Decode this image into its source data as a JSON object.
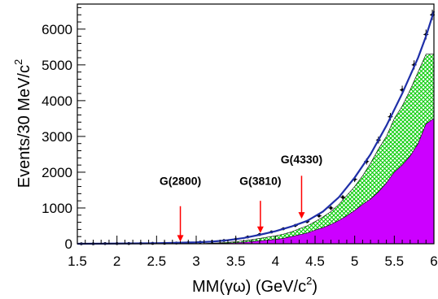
{
  "chart_data": {
    "type": "area",
    "ylabel": "Events/30 MeV/c",
    "ylabel_sup": "2",
    "xlabel": "MM(γω) (GeV/c",
    "xlabel_sup": "2",
    "xlabel_end": ")",
    "xlim": [
      1.5,
      6.0
    ],
    "ylim": [
      0,
      6700
    ],
    "xticks": [
      "1.5",
      "2",
      "2.5",
      "3",
      "3.5",
      "4",
      "4.5",
      "5",
      "5.5",
      "6"
    ],
    "xtick_values": [
      1.5,
      2.0,
      2.5,
      3.0,
      3.5,
      4.0,
      4.5,
      5.0,
      5.5,
      6.0
    ],
    "yticks": [
      "0",
      "1000",
      "2000",
      "3000",
      "4000",
      "5000",
      "6000"
    ],
    "ytick_values": [
      0,
      1000,
      2000,
      3000,
      4000,
      5000,
      6000
    ],
    "colors": {
      "magenta": "#cc00ff",
      "green_hatch": "#00cc00",
      "fit_curve": "#1f2fa8",
      "arrow": "#ff0000",
      "points": "#000000"
    },
    "annotations": [
      {
        "label": "G(2800)",
        "x": 2.8,
        "y_tip": 60,
        "y_tail": 1050,
        "label_y": 1650
      },
      {
        "label": "G(3810)",
        "x": 3.81,
        "y_tip": 300,
        "y_tail": 1200,
        "label_y": 1650
      },
      {
        "label": "G(4330)",
        "x": 4.33,
        "y_tip": 700,
        "y_tail": 1900,
        "label_y": 2250
      }
    ],
    "series": [
      {
        "kind": "magenta-histogram",
        "x": [
          1.5,
          1.8,
          2.1,
          2.4,
          2.7,
          3.0,
          3.2,
          3.4,
          3.6,
          3.8,
          4.0,
          4.1,
          4.2,
          4.3,
          4.4,
          4.5,
          4.6,
          4.7,
          4.8,
          4.9,
          5.0,
          5.1,
          5.2,
          5.3,
          5.4,
          5.5,
          5.6,
          5.7,
          5.8,
          5.9,
          6.0
        ],
        "y": [
          0,
          0,
          0,
          0,
          0,
          0,
          10,
          20,
          40,
          80,
          120,
          150,
          200,
          250,
          300,
          380,
          450,
          540,
          650,
          780,
          930,
          1100,
          1250,
          1450,
          1700,
          2000,
          2200,
          2450,
          2800,
          3350,
          3500
        ]
      },
      {
        "kind": "green-hatched-histogram",
        "x": [
          1.5,
          1.8,
          2.1,
          2.4,
          2.7,
          3.0,
          3.2,
          3.4,
          3.6,
          3.8,
          4.0,
          4.1,
          4.2,
          4.3,
          4.4,
          4.5,
          4.6,
          4.7,
          4.8,
          4.9,
          5.0,
          5.1,
          5.2,
          5.3,
          5.4,
          5.5,
          5.6,
          5.7,
          5.8,
          5.9,
          6.0
        ],
        "y": [
          0,
          0,
          0,
          0,
          0,
          0,
          15,
          40,
          80,
          150,
          220,
          270,
          330,
          420,
          500,
          620,
          750,
          900,
          1100,
          1350,
          1600,
          1900,
          2250,
          2650,
          3000,
          3500,
          3850,
          4300,
          4800,
          5300,
          5300
        ]
      },
      {
        "kind": "fit-curve",
        "x": [
          1.5,
          2.0,
          2.5,
          3.0,
          3.2,
          3.4,
          3.6,
          3.8,
          4.0,
          4.2,
          4.4,
          4.6,
          4.8,
          5.0,
          5.2,
          5.4,
          5.6,
          5.8,
          5.9,
          6.0
        ],
        "y": [
          0,
          5,
          15,
          40,
          60,
          100,
          160,
          250,
          350,
          480,
          640,
          900,
          1300,
          1850,
          2500,
          3300,
          4200,
          5200,
          5800,
          6500
        ]
      },
      {
        "kind": "data-points",
        "x": [
          1.55,
          1.7,
          1.85,
          2.0,
          2.15,
          2.3,
          2.45,
          2.6,
          2.75,
          2.9,
          3.05,
          3.2,
          3.35,
          3.5,
          3.65,
          3.8,
          3.95,
          4.1,
          4.25,
          4.4,
          4.55,
          4.7,
          4.85,
          5.0,
          5.15,
          5.3,
          5.45,
          5.6,
          5.75,
          5.9,
          5.98
        ],
        "y": [
          0,
          0,
          5,
          5,
          8,
          10,
          12,
          15,
          20,
          30,
          45,
          60,
          90,
          130,
          190,
          260,
          330,
          420,
          510,
          620,
          780,
          1000,
          1300,
          1800,
          2300,
          2900,
          3550,
          4300,
          5000,
          5850,
          6400
        ]
      }
    ]
  }
}
